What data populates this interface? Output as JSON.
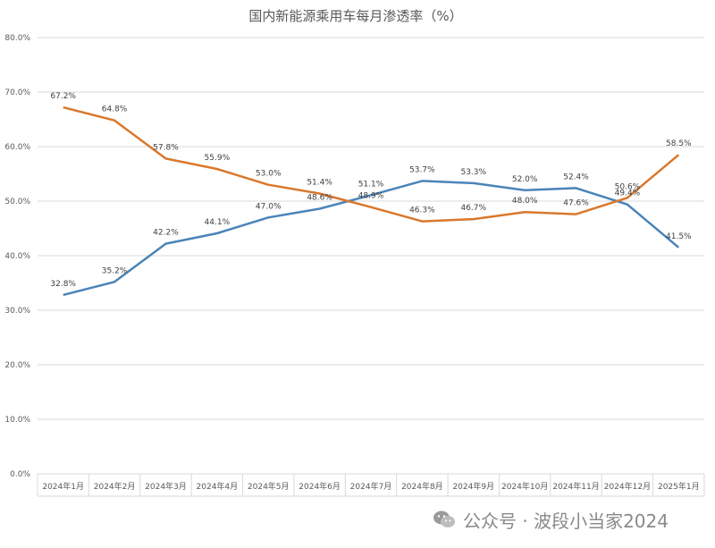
{
  "chart_data": {
    "type": "line",
    "title": "国内新能源乘用车每月渗透率（%）",
    "xlabel": "",
    "ylabel": "",
    "categories": [
      "2024年1月",
      "2024年2月",
      "2024年3月",
      "2024年4月",
      "2024年5月",
      "2024年6月",
      "2024年7月",
      "2024年8月",
      "2024年9月",
      "2024年10月",
      "2024年11月",
      "2024年12月",
      "2025年1月"
    ],
    "yticks": [
      "0.0%",
      "10.0%",
      "20.0%",
      "30.0%",
      "40.0%",
      "50.0%",
      "60.0%",
      "70.0%",
      "80.0%"
    ],
    "ylim": [
      0,
      80
    ],
    "grid": true,
    "series": [
      {
        "color": "#4a84b8",
        "values": [
          32.8,
          35.2,
          42.2,
          44.1,
          47.0,
          48.6,
          51.1,
          53.7,
          53.3,
          52.0,
          52.4,
          49.4,
          41.5
        ],
        "labels": [
          "32.8%",
          "35.2%",
          "42.2%",
          "44.1%",
          "47.0%",
          "48.6%",
          "51.1%",
          "53.7%",
          "53.3%",
          "52.0%",
          "52.4%",
          "49.4%",
          "41.5%"
        ]
      },
      {
        "color": "#d9782d",
        "values": [
          67.2,
          64.8,
          57.8,
          55.9,
          53.0,
          51.4,
          48.9,
          46.3,
          46.7,
          48.0,
          47.6,
          50.6,
          58.5
        ],
        "labels": [
          "67.2%",
          "64.8%",
          "57.8%",
          "55.9%",
          "53.0%",
          "51.4%",
          "48.9%",
          "46.3%",
          "46.7%",
          "48.0%",
          "47.6%",
          "50.6%",
          "58.5%"
        ]
      }
    ]
  },
  "watermark": {
    "icon": "wechat-icon",
    "text": "公众号 · 波段小当家2024"
  }
}
